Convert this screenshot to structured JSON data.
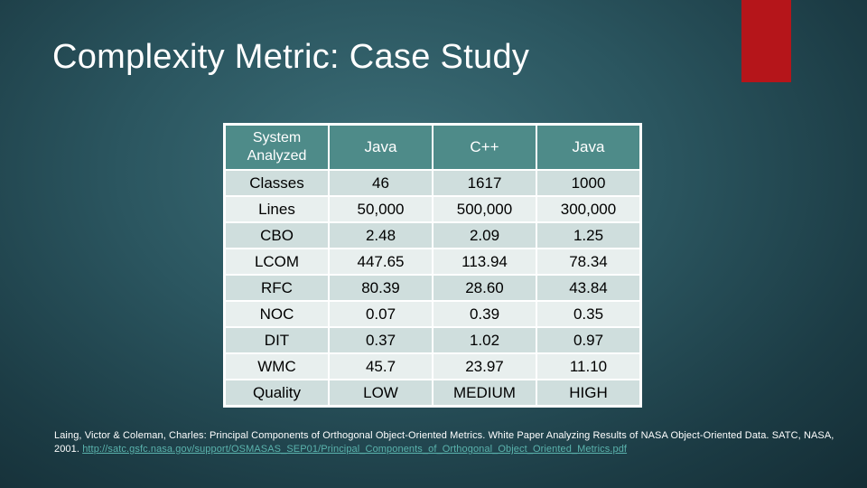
{
  "slide": {
    "title": "Complexity Metric: Case Study",
    "accent_color": "#b5151a"
  },
  "table": {
    "header": [
      "System Analyzed",
      "Java",
      "C++",
      "Java"
    ],
    "rows": [
      [
        "Classes",
        "46",
        "1617",
        "1000"
      ],
      [
        "Lines",
        "50,000",
        "500,000",
        "300,000"
      ],
      [
        "CBO",
        "2.48",
        "2.09",
        "1.25"
      ],
      [
        "LCOM",
        "447.65",
        "113.94",
        "78.34"
      ],
      [
        "RFC",
        "80.39",
        "28.60",
        "43.84"
      ],
      [
        "NOC",
        "0.07",
        "0.39",
        "0.35"
      ],
      [
        "DIT",
        "0.37",
        "1.02",
        "0.97"
      ],
      [
        "WMC",
        "45.7",
        "23.97",
        "11.10"
      ],
      [
        "Quality",
        "LOW",
        "MEDIUM",
        "HIGH"
      ]
    ]
  },
  "citation": {
    "text": "Laing, Victor & Coleman, Charles: Principal Components of Orthogonal Object-Oriented Metrics. White Paper Analyzing Results of NASA Object-Oriented Data. SATC, NASA, 2001.",
    "link": "http://satc.gsfc.nasa.gov/support/OSMASAS_SEP01/Principal_Components_of_Orthogonal_Object_Oriented_Metrics.pdf"
  }
}
